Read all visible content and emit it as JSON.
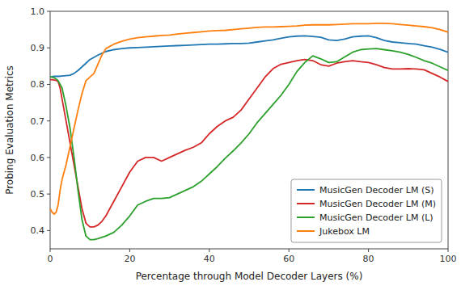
{
  "chart_data": {
    "type": "line",
    "xlabel": "Percentage through Model Decoder Layers (%)",
    "ylabel": "Probing Evaluation Metrics",
    "xlim": [
      0,
      100
    ],
    "ylim": [
      0.35,
      1.0
    ],
    "xticks": [
      0,
      20,
      40,
      60,
      80,
      100
    ],
    "yticks": [
      0.4,
      0.5,
      0.6,
      0.7,
      0.8,
      0.9,
      {
        "value": 1.0,
        "label": "1.0"
      }
    ],
    "grid": false,
    "legend": "lower right",
    "series": [
      {
        "name": "MusicGen Decoder LM (S)",
        "color": "#1f77b4",
        "x": [
          0,
          0.5,
          1,
          1.5,
          2,
          3,
          4,
          5,
          6,
          7,
          8,
          9,
          10,
          12,
          14,
          16,
          18,
          20,
          22,
          24,
          26,
          28,
          30,
          32,
          34,
          36,
          38,
          40,
          42,
          44,
          46,
          48,
          50,
          52,
          54,
          56,
          58,
          60,
          62,
          64,
          66,
          68,
          70,
          72,
          74,
          76,
          78,
          80,
          82,
          84,
          86,
          88,
          90,
          92,
          94,
          96,
          98,
          100
        ],
        "values": [
          0.82,
          0.821,
          0.822,
          0.822,
          0.822,
          0.823,
          0.824,
          0.825,
          0.83,
          0.838,
          0.848,
          0.858,
          0.868,
          0.88,
          0.89,
          0.895,
          0.898,
          0.9,
          0.901,
          0.902,
          0.903,
          0.904,
          0.905,
          0.906,
          0.907,
          0.908,
          0.909,
          0.91,
          0.91,
          0.911,
          0.912,
          0.912,
          0.913,
          0.916,
          0.919,
          0.922,
          0.926,
          0.93,
          0.932,
          0.933,
          0.931,
          0.929,
          0.922,
          0.92,
          0.924,
          0.93,
          0.932,
          0.933,
          0.928,
          0.92,
          0.916,
          0.914,
          0.912,
          0.91,
          0.906,
          0.902,
          0.896,
          0.888
        ]
      },
      {
        "name": "MusicGen Decoder LM (M)",
        "color": "#d62728",
        "x": [
          0,
          0.5,
          1,
          1.5,
          2,
          2.5,
          3,
          4,
          5,
          6,
          7,
          8,
          9,
          10,
          11,
          12,
          13,
          14,
          16,
          18,
          20,
          22,
          24,
          26,
          28,
          30,
          32,
          34,
          36,
          38,
          40,
          42,
          44,
          46,
          48,
          50,
          52,
          54,
          56,
          58,
          60,
          62,
          64,
          66,
          68,
          70,
          72,
          74,
          76,
          78,
          80,
          82,
          84,
          86,
          88,
          90,
          92,
          94,
          96,
          98,
          100
        ],
        "values": [
          0.813,
          0.813,
          0.812,
          0.811,
          0.808,
          0.79,
          0.76,
          0.7,
          0.64,
          0.58,
          0.52,
          0.46,
          0.42,
          0.41,
          0.41,
          0.415,
          0.425,
          0.44,
          0.48,
          0.52,
          0.56,
          0.59,
          0.6,
          0.6,
          0.59,
          0.6,
          0.61,
          0.62,
          0.628,
          0.64,
          0.665,
          0.685,
          0.7,
          0.71,
          0.73,
          0.76,
          0.79,
          0.82,
          0.843,
          0.855,
          0.86,
          0.865,
          0.868,
          0.865,
          0.854,
          0.85,
          0.858,
          0.862,
          0.865,
          0.862,
          0.86,
          0.854,
          0.846,
          0.842,
          0.842,
          0.843,
          0.842,
          0.84,
          0.83,
          0.82,
          0.808
        ]
      },
      {
        "name": "MusicGen Decoder LM (L)",
        "color": "#2ca02c",
        "x": [
          0,
          0.5,
          1,
          1.5,
          2,
          2.5,
          3,
          4,
          5,
          6,
          7,
          8,
          9,
          10,
          11,
          12,
          14,
          16,
          18,
          20,
          22,
          24,
          26,
          28,
          30,
          32,
          34,
          36,
          38,
          40,
          42,
          44,
          46,
          48,
          50,
          52,
          54,
          56,
          58,
          60,
          62,
          64,
          66,
          68,
          70,
          72,
          74,
          76,
          78,
          80,
          82,
          84,
          86,
          88,
          90,
          92,
          94,
          96,
          98,
          100
        ],
        "values": [
          0.82,
          0.82,
          0.818,
          0.815,
          0.81,
          0.8,
          0.79,
          0.74,
          0.68,
          0.6,
          0.51,
          0.43,
          0.385,
          0.375,
          0.375,
          0.378,
          0.385,
          0.395,
          0.415,
          0.44,
          0.47,
          0.48,
          0.488,
          0.488,
          0.49,
          0.5,
          0.51,
          0.52,
          0.535,
          0.555,
          0.575,
          0.598,
          0.618,
          0.64,
          0.665,
          0.695,
          0.72,
          0.745,
          0.77,
          0.8,
          0.835,
          0.86,
          0.878,
          0.87,
          0.86,
          0.862,
          0.875,
          0.888,
          0.895,
          0.897,
          0.898,
          0.895,
          0.892,
          0.888,
          0.882,
          0.874,
          0.865,
          0.858,
          0.848,
          0.838
        ]
      },
      {
        "name": "Jukebox LM",
        "color": "#ff7f0e",
        "x": [
          0,
          0.5,
          1,
          1.5,
          2,
          2.5,
          3,
          3.5,
          4,
          5,
          6,
          7,
          8,
          9,
          10,
          11,
          12,
          13,
          14,
          16,
          18,
          20,
          22,
          24,
          26,
          28,
          30,
          32,
          34,
          36,
          38,
          40,
          42,
          44,
          46,
          48,
          50,
          52,
          54,
          56,
          58,
          60,
          62,
          64,
          66,
          68,
          70,
          72,
          74,
          76,
          78,
          80,
          82,
          84,
          86,
          88,
          90,
          92,
          94,
          96,
          98,
          100
        ],
        "values": [
          0.46,
          0.45,
          0.445,
          0.45,
          0.47,
          0.51,
          0.54,
          0.56,
          0.58,
          0.63,
          0.68,
          0.73,
          0.775,
          0.81,
          0.82,
          0.83,
          0.855,
          0.88,
          0.898,
          0.91,
          0.918,
          0.924,
          0.928,
          0.93,
          0.932,
          0.934,
          0.935,
          0.938,
          0.94,
          0.942,
          0.944,
          0.946,
          0.947,
          0.948,
          0.95,
          0.952,
          0.954,
          0.956,
          0.957,
          0.957,
          0.958,
          0.959,
          0.96,
          0.962,
          0.963,
          0.963,
          0.963,
          0.964,
          0.965,
          0.966,
          0.966,
          0.966,
          0.967,
          0.967,
          0.966,
          0.964,
          0.962,
          0.96,
          0.958,
          0.955,
          0.95,
          0.943
        ]
      }
    ]
  }
}
